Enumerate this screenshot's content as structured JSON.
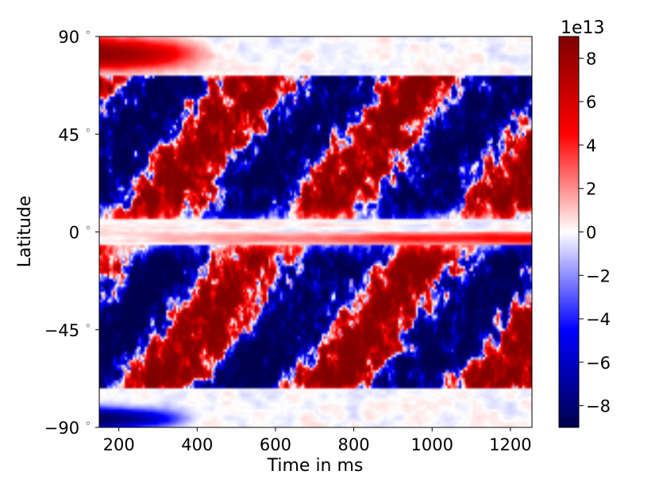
{
  "chart_data": {
    "type": "heatmap",
    "title": "",
    "xlabel": "Time in ms",
    "ylabel": "Latitude",
    "xlim": [
      150,
      1255
    ],
    "ylim": [
      -90,
      90
    ],
    "x_ticks": [
      200,
      400,
      600,
      800,
      1000,
      1200
    ],
    "x_tick_labels": [
      "200",
      "400",
      "600",
      "800",
      "1000",
      "1200"
    ],
    "y_ticks": [
      90,
      45,
      0,
      -45,
      -90
    ],
    "y_tick_labels": [
      "90$^\\circ$",
      "45$^\\circ$",
      "0$^\\circ$",
      "−45$^\\circ$",
      "−90$^\\circ$"
    ],
    "colorbar": {
      "range": [
        -90000000000000.0,
        90000000000000.0
      ],
      "offset_label": "1e13",
      "ticks": [
        8,
        6,
        4,
        2,
        0,
        -2,
        -4,
        -6,
        -8
      ],
      "tick_labels": [
        "8",
        "6",
        "4",
        "2",
        "0",
        "−2",
        "−4",
        "−6",
        "−8"
      ]
    },
    "colormap": "seismic",
    "colormap_stops": [
      "#00004c",
      "#0000ff",
      "#ffffff",
      "#ff0000",
      "#7f0000"
    ],
    "description_note": "",
    "grid": false
  }
}
